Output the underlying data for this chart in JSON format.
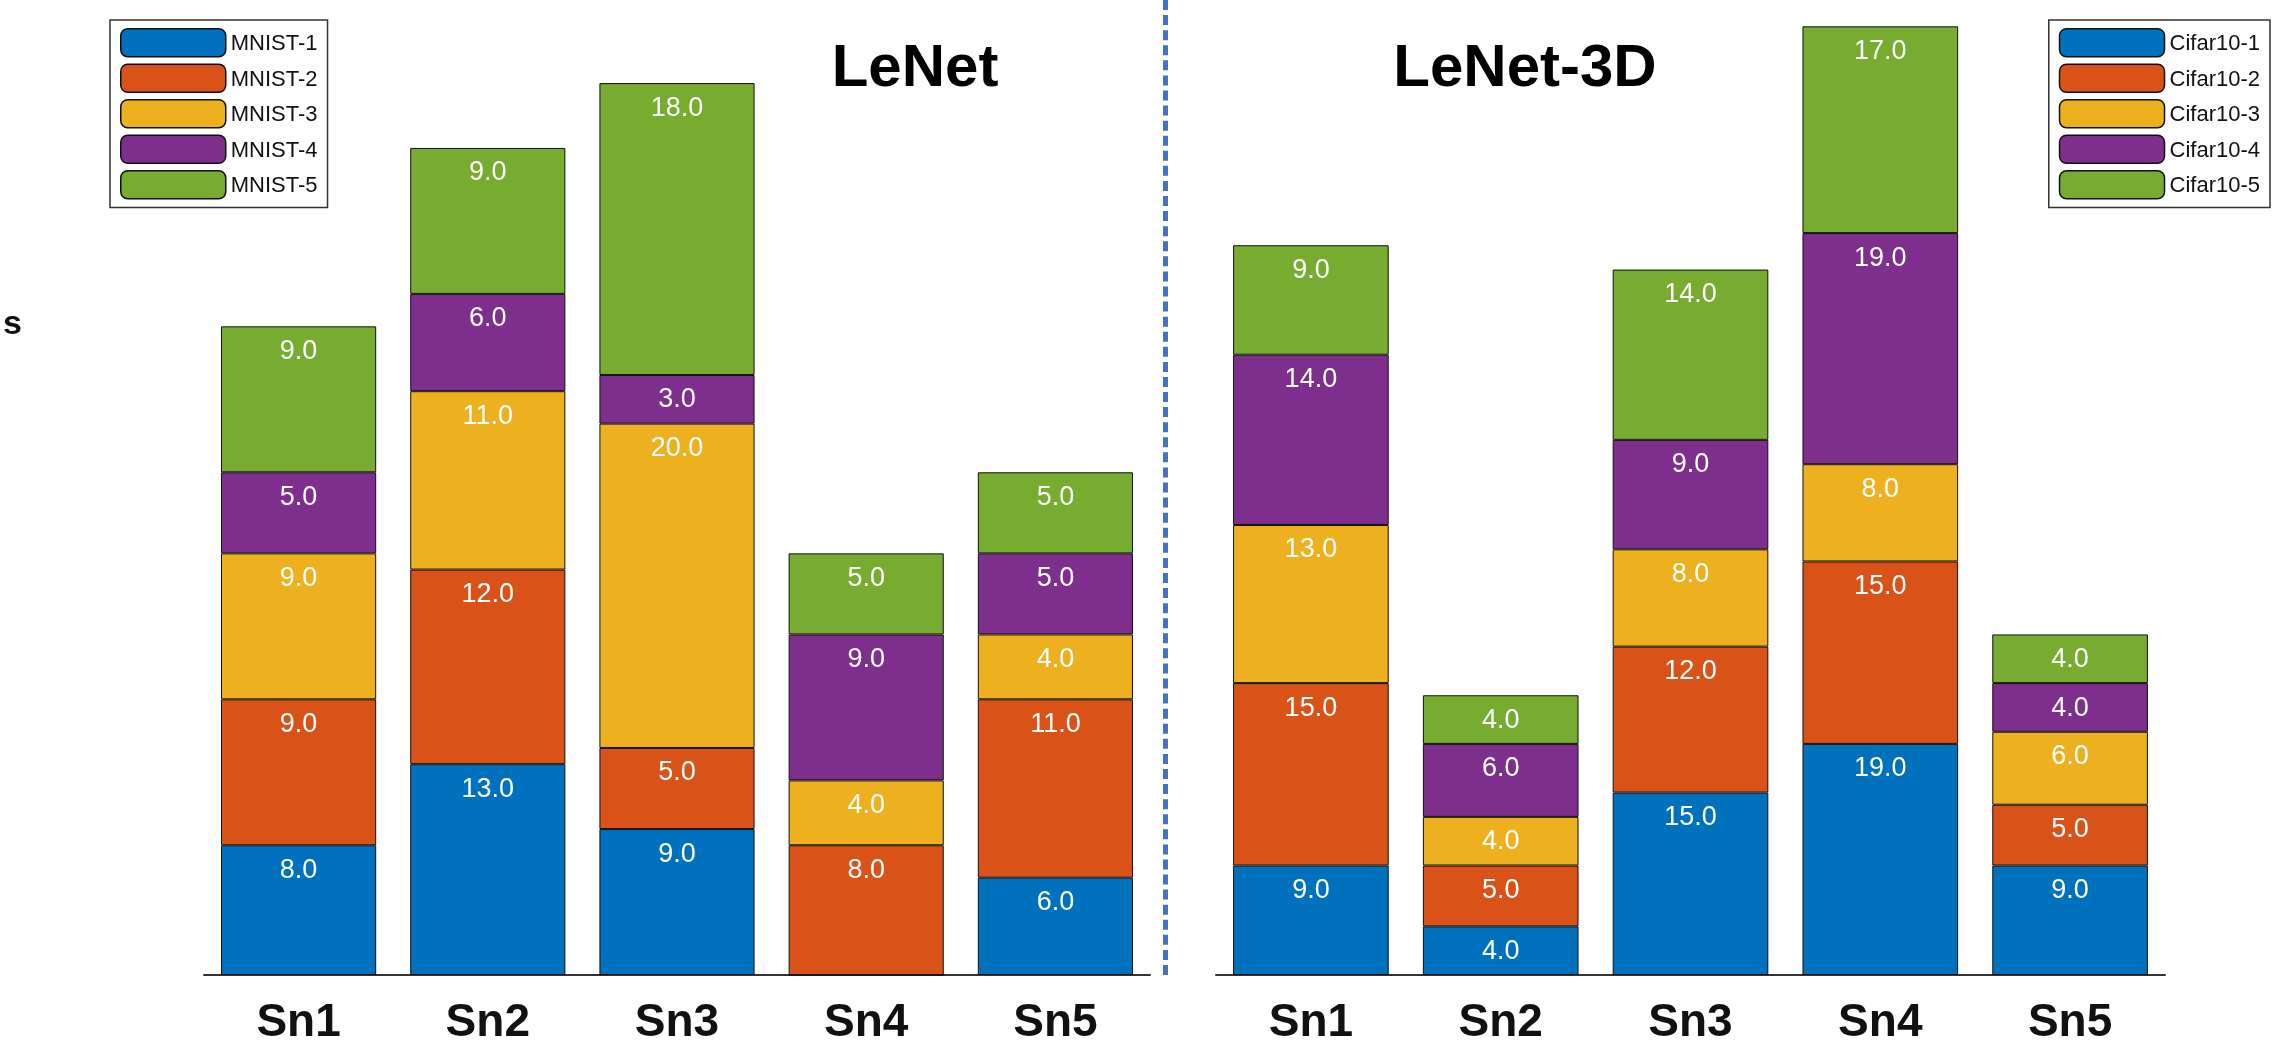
{
  "chart_data": [
    {
      "type": "bar",
      "title": "LeNet",
      "ylabel": "s",
      "categories": [
        "Sn1",
        "Sn2",
        "Sn3",
        "Sn4",
        "Sn5"
      ],
      "stacked": true,
      "tick_labels": "x",
      "legend": "top left",
      "series": [
        {
          "name": "MNIST-1",
          "color": "#0072bd",
          "values": [
            8,
            13,
            9,
            0,
            6
          ],
          "value_labels": [
            "8.0",
            "13.0",
            "9.0",
            null,
            "6.0"
          ]
        },
        {
          "name": "MNIST-2",
          "color": "#d95319",
          "values": [
            9,
            12,
            5,
            8,
            11
          ],
          "value_labels": [
            "9.0",
            "12.0",
            "5.0",
            "8.0",
            "11.0"
          ]
        },
        {
          "name": "MNIST-3",
          "color": "#edb120",
          "values": [
            9,
            11,
            20,
            4,
            4
          ],
          "value_labels": [
            "9.0",
            "11.0",
            "20.0",
            "4.0",
            "4.0"
          ]
        },
        {
          "name": "MNIST-4",
          "color": "#7e2f8e",
          "values": [
            5,
            6,
            3,
            9,
            5
          ],
          "value_labels": [
            "5.0",
            "6.0",
            "3.0",
            "9.0",
            "5.0"
          ]
        },
        {
          "name": "MNIST-5",
          "color": "#77ac30",
          "values": [
            9,
            9,
            18,
            5,
            5
          ],
          "value_labels": [
            "9.0",
            "9.0",
            "18.0",
            "5.0",
            "5.0"
          ]
        }
      ]
    },
    {
      "type": "bar",
      "title": "LeNet-3D",
      "categories": [
        "Sn1",
        "Sn2",
        "Sn3",
        "Sn4",
        "Sn5"
      ],
      "stacked": true,
      "tick_labels": "x",
      "legend": "top right",
      "series": [
        {
          "name": "Cifar10-1",
          "color": "#0072bd",
          "values": [
            9,
            4,
            15,
            19,
            9
          ],
          "value_labels": [
            "9.0",
            "4.0",
            "15.0",
            "19.0",
            "9.0"
          ]
        },
        {
          "name": "Cifar10-2",
          "color": "#d95319",
          "values": [
            15,
            5,
            12,
            15,
            5
          ],
          "value_labels": [
            "15.0",
            "5.0",
            "12.0",
            "15.0",
            "5.0"
          ]
        },
        {
          "name": "Cifar10-3",
          "color": "#edb120",
          "values": [
            13,
            4,
            8,
            8,
            6
          ],
          "value_labels": [
            "13.0",
            "4.0",
            "8.0",
            "8.0",
            "6.0"
          ]
        },
        {
          "name": "Cifar10-4",
          "color": "#7e2f8e",
          "values": [
            14,
            6,
            9,
            19,
            4
          ],
          "value_labels": [
            "14.0",
            "6.0",
            "9.0",
            "19.0",
            "4.0"
          ]
        },
        {
          "name": "Cifar10-5",
          "color": "#77ac30",
          "values": [
            9,
            4,
            14,
            17,
            4
          ],
          "value_labels": [
            "9.0",
            "4.0",
            "14.0",
            "17.0",
            "4.0"
          ]
        }
      ]
    }
  ]
}
